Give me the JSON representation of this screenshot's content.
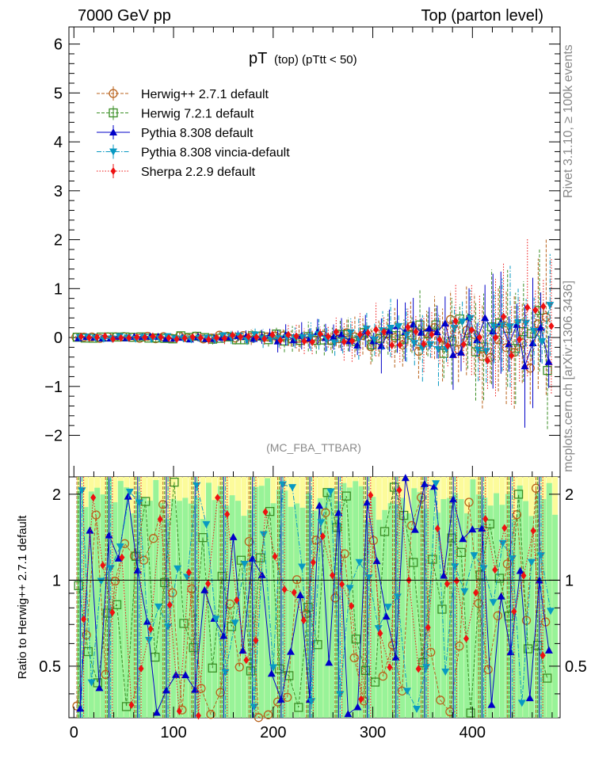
{
  "header": {
    "left": "7000 GeV pp",
    "right": "Top (parton level)"
  },
  "side_labels": {
    "rivet": "Rivet 3.1.10, ≥ 100k events",
    "mcplots": "mcplots.cern.ch [arXiv:1306.3436]"
  },
  "chart_data": {
    "type": "scatter",
    "title_main": "pT",
    "title_sub": "(top) (pTtt < 50)",
    "analysis_tag": "(MC_FBA_TTBAR)",
    "xlabel": "",
    "ylabel": "",
    "xlim": [
      -5,
      488
    ],
    "ylim": [
      -2.85,
      6.35
    ],
    "x_ticks": [
      0,
      100,
      200,
      300,
      400
    ],
    "y_ticks": [
      -2,
      -1,
      0,
      1,
      2,
      3,
      4,
      5,
      6
    ],
    "legend_position": "top-left",
    "series": [
      {
        "name": "Herwig++ 2.7.1 default",
        "color": "#b8621b",
        "marker": "open-circle",
        "line": "dashed"
      },
      {
        "name": "Herwig 7.2.1 default",
        "color": "#3a8e25",
        "marker": "open-square",
        "line": "dashed"
      },
      {
        "name": "Pythia 8.308 default",
        "color": "#0000c8",
        "marker": "filled-triangle-up",
        "line": "solid"
      },
      {
        "name": "Pythia 8.308 vincia-default",
        "color": "#0899c2",
        "marker": "filled-triangle-down",
        "line": "dash-dot"
      },
      {
        "name": "Sherpa 2.2.9 default",
        "color": "#ee1111",
        "marker": "filled-diamond",
        "line": "dotted"
      }
    ],
    "ratio_panel": {
      "ylabel": "Ratio to Herwig++ 2.7.1 default",
      "ylim": [
        0.33,
        2.3
      ],
      "y_ticks": [
        0.5,
        1,
        2
      ],
      "y_tick_labels": [
        "0.5",
        "1",
        "2"
      ],
      "log_scale": true,
      "reference_line": 1,
      "band_colors": {
        "inner": "#98f398",
        "outer": "#fcfb9b"
      }
    }
  }
}
